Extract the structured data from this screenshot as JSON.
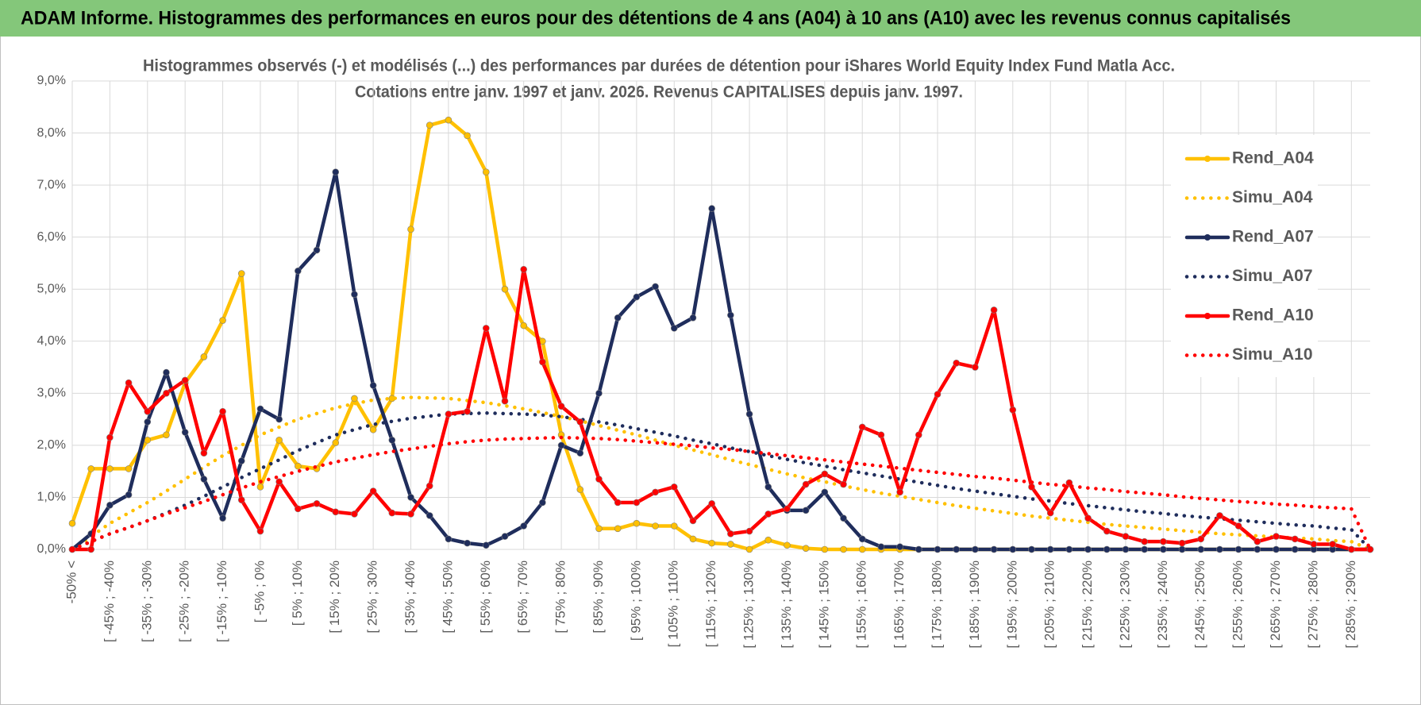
{
  "page_title": "ADAM Informe. Histogrammes des performances en euros pour des détentions de 4 ans (A04) à 10 ans (A10) avec les revenus connus capitalisés",
  "chart_data": {
    "type": "line",
    "title": "Histogrammes observés (-) et modélisés (...) des performances par durées de détention pour iShares World Equity Index Fund Matla Acc.",
    "subtitle": "Cotations entre janv. 1997 et janv. 2026. Revenus CAPITALISES depuis janv. 1997.",
    "categories": [
      "-50% <",
      null,
      "[ -45% ; -40%",
      null,
      "[ -35% ; -30%",
      null,
      "[ -25% ; -20%",
      null,
      "[ -15% ; -10%",
      null,
      "[ -5% ; 0%",
      null,
      "[ 5% ; 10%",
      null,
      "[ 15% ; 20%",
      null,
      "[ 25% ; 30%",
      null,
      "[ 35% ; 40%",
      null,
      "[ 45% ; 50%",
      null,
      "[ 55% ; 60%",
      null,
      "[ 65% ; 70%",
      null,
      "[ 75% ; 80%",
      null,
      "[ 85% ; 90%",
      null,
      "[ 95% ; 100%",
      null,
      "[ 105% ; 110%",
      null,
      "[ 115% ; 120%",
      null,
      "[ 125% ; 130%",
      null,
      "[ 135% ; 140%",
      null,
      "[ 145% ; 150%",
      null,
      "[ 155% ; 160%",
      null,
      "[ 165% ; 170%",
      null,
      "[ 175% ; 180%",
      null,
      "[ 185% ; 190%",
      null,
      "[ 195% ; 200%",
      null,
      "[ 205% ; 210%",
      null,
      "[ 215% ; 220%",
      null,
      "[ 225% ; 230%",
      null,
      "[ 235% ; 240%",
      null,
      "[ 245% ; 250%",
      null,
      "[ 255% ; 260%",
      null,
      "[ 265% ; 270%",
      null,
      "[ 275% ; 280%",
      null,
      "[ 285% ; 290%",
      null
    ],
    "ylim": [
      0,
      9
    ],
    "yticks": [
      {
        "value": 0,
        "label": "0,0%"
      },
      {
        "value": 1,
        "label": "1,0%"
      },
      {
        "value": 2,
        "label": "2,0%"
      },
      {
        "value": 3,
        "label": "3,0%"
      },
      {
        "value": 4,
        "label": "4,0%"
      },
      {
        "value": 5,
        "label": "5,0%"
      },
      {
        "value": 6,
        "label": "6,0%"
      },
      {
        "value": 7,
        "label": "7,0%"
      },
      {
        "value": 8,
        "label": "8,0%"
      },
      {
        "value": 9,
        "label": "9,0%"
      }
    ],
    "grid": true,
    "legend": "right",
    "series": [
      {
        "name": "Rend_A04",
        "color": "#ffc000",
        "line_style": "solid",
        "markers": true,
        "values": [
          0.5,
          1.55,
          1.55,
          1.55,
          2.1,
          2.2,
          3.2,
          3.7,
          4.4,
          5.3,
          1.2,
          2.1,
          1.6,
          1.55,
          2.05,
          2.9,
          2.3,
          2.9,
          6.15,
          8.15,
          8.25,
          7.95,
          7.25,
          5.0,
          4.3,
          4.0,
          2.2,
          1.15,
          0.4,
          0.4,
          0.5,
          0.45,
          0.45,
          0.2,
          0.12,
          0.1,
          0,
          0.18,
          0.08,
          0.02,
          0,
          0,
          0,
          0,
          0,
          0,
          0,
          0,
          0,
          0,
          0,
          0,
          0,
          0,
          0,
          0,
          0,
          0,
          0,
          0,
          0,
          0,
          0,
          0,
          0,
          0,
          0,
          0,
          0,
          0
        ]
      },
      {
        "name": "Simu_A04",
        "color": "#ffc000",
        "line_style": "dotted",
        "markers": false,
        "values": [
          0,
          0.25,
          0.5,
          0.7,
          0.9,
          1.12,
          1.35,
          1.58,
          1.8,
          2.0,
          2.2,
          2.35,
          2.5,
          2.61,
          2.72,
          2.8,
          2.87,
          2.9,
          2.92,
          2.91,
          2.9,
          2.86,
          2.82,
          2.76,
          2.7,
          2.63,
          2.55,
          2.47,
          2.38,
          2.29,
          2.2,
          2.1,
          2.0,
          1.91,
          1.82,
          1.72,
          1.63,
          1.54,
          1.45,
          1.37,
          1.3,
          1.22,
          1.15,
          1.08,
          1.02,
          0.96,
          0.9,
          0.84,
          0.79,
          0.74,
          0.69,
          0.64,
          0.6,
          0.56,
          0.52,
          0.48,
          0.45,
          0.42,
          0.39,
          0.36,
          0.33,
          0.3,
          0.28,
          0.26,
          0.24,
          0.22,
          0.2,
          0.17,
          0.15,
          0
        ]
      },
      {
        "name": "Rend_A07",
        "color": "#1f2d5c",
        "line_style": "solid",
        "markers": true,
        "values": [
          0,
          0.3,
          0.85,
          1.05,
          2.45,
          3.4,
          2.25,
          1.35,
          0.6,
          1.7,
          2.7,
          2.5,
          5.35,
          5.75,
          7.25,
          4.9,
          3.15,
          2.1,
          1.0,
          0.65,
          0.2,
          0.12,
          0.08,
          0.25,
          0.45,
          0.9,
          2.0,
          1.85,
          3.0,
          4.45,
          4.85,
          5.05,
          4.25,
          4.45,
          6.55,
          4.5,
          2.6,
          1.2,
          0.75,
          0.75,
          1.1,
          0.6,
          0.2,
          0.05,
          0.05,
          0,
          0,
          0,
          0,
          0,
          0,
          0,
          0,
          0,
          0,
          0,
          0,
          0,
          0,
          0,
          0,
          0,
          0,
          0,
          0,
          0,
          0,
          0,
          0,
          0
        ]
      },
      {
        "name": "Simu_A07",
        "color": "#1f2d5c",
        "line_style": "dotted",
        "markers": false,
        "values": [
          0,
          0.15,
          0.3,
          0.42,
          0.55,
          0.7,
          0.85,
          1.02,
          1.2,
          1.38,
          1.55,
          1.72,
          1.9,
          2.05,
          2.2,
          2.3,
          2.4,
          2.46,
          2.52,
          2.56,
          2.6,
          2.61,
          2.62,
          2.61,
          2.6,
          2.58,
          2.55,
          2.5,
          2.45,
          2.39,
          2.32,
          2.25,
          2.18,
          2.1,
          2.03,
          1.95,
          1.88,
          1.8,
          1.73,
          1.66,
          1.6,
          1.53,
          1.47,
          1.41,
          1.35,
          1.29,
          1.23,
          1.17,
          1.12,
          1.07,
          1.02,
          0.97,
          0.93,
          0.88,
          0.84,
          0.8,
          0.76,
          0.72,
          0.69,
          0.65,
          0.62,
          0.59,
          0.56,
          0.53,
          0.5,
          0.47,
          0.45,
          0.41,
          0.38,
          0
        ]
      },
      {
        "name": "Rend_A10",
        "color": "#ff0000",
        "line_style": "solid",
        "markers": true,
        "values": [
          0,
          0,
          2.15,
          3.2,
          2.65,
          3.0,
          3.25,
          1.85,
          2.65,
          0.95,
          0.35,
          1.3,
          0.78,
          0.88,
          0.72,
          0.68,
          1.12,
          0.7,
          0.68,
          1.22,
          2.6,
          2.65,
          4.25,
          2.85,
          5.38,
          3.6,
          2.75,
          2.45,
          1.35,
          0.9,
          0.9,
          1.1,
          1.2,
          0.55,
          0.88,
          0.3,
          0.35,
          0.68,
          0.78,
          1.25,
          1.45,
          1.25,
          2.35,
          2.2,
          1.1,
          2.2,
          2.98,
          3.58,
          3.5,
          4.6,
          2.68,
          1.2,
          0.7,
          1.28,
          0.6,
          0.35,
          0.25,
          0.15,
          0.15,
          0.12,
          0.2,
          0.65,
          0.45,
          0.15,
          0.25,
          0.2,
          0.1,
          0.1,
          0,
          0
        ]
      },
      {
        "name": "Simu_A10",
        "color": "#ff0000",
        "line_style": "dotted",
        "markers": false,
        "values": [
          0,
          0.15,
          0.3,
          0.42,
          0.55,
          0.68,
          0.8,
          0.92,
          1.05,
          1.18,
          1.3,
          1.4,
          1.5,
          1.59,
          1.68,
          1.75,
          1.82,
          1.88,
          1.93,
          1.98,
          2.03,
          2.07,
          2.1,
          2.12,
          2.13,
          2.14,
          2.15,
          2.14,
          2.13,
          2.11,
          2.08,
          2.05,
          2.02,
          1.99,
          1.95,
          1.92,
          1.88,
          1.84,
          1.8,
          1.76,
          1.72,
          1.68,
          1.64,
          1.6,
          1.56,
          1.52,
          1.48,
          1.44,
          1.4,
          1.37,
          1.33,
          1.29,
          1.25,
          1.22,
          1.18,
          1.15,
          1.11,
          1.08,
          1.05,
          1.01,
          0.98,
          0.95,
          0.92,
          0.9,
          0.87,
          0.85,
          0.82,
          0.8,
          0.78,
          0
        ]
      }
    ]
  }
}
